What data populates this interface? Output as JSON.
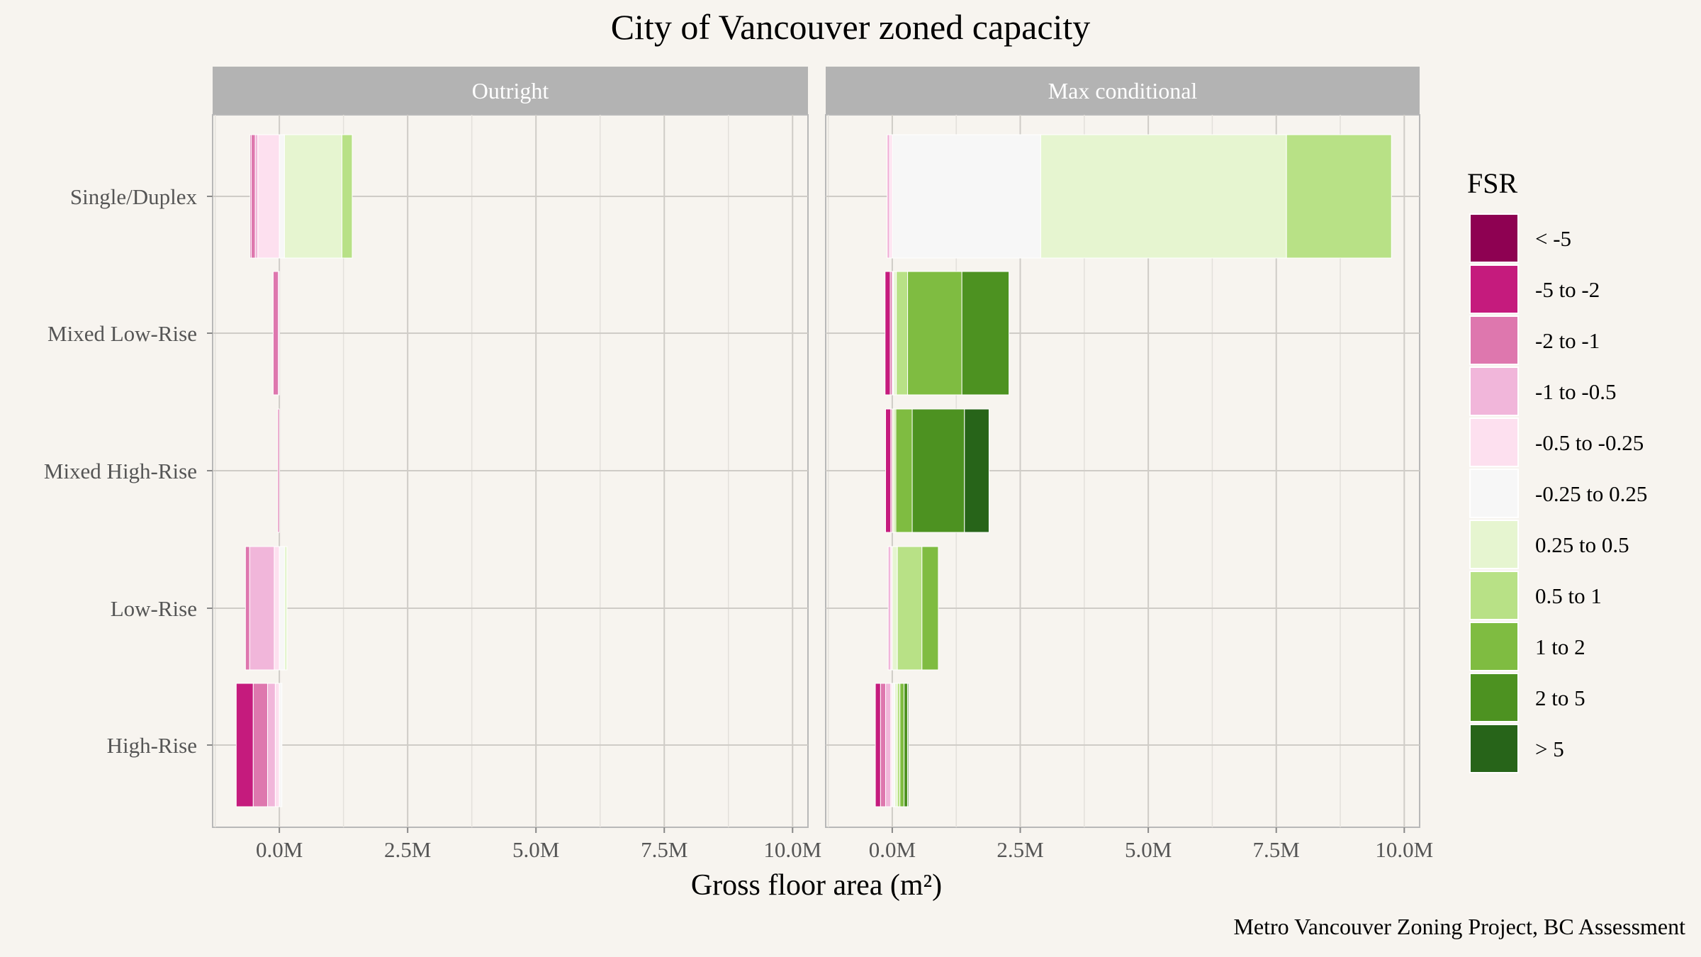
{
  "chart_data": {
    "type": "bar",
    "orientation": "horizontal",
    "stacked": "diverging",
    "title": "City of Vancouver zoned capacity",
    "xlabel": "Gross floor area (m²)",
    "caption": "Metro Vancouver Zoning Project, BC Assessment",
    "xlim": [
      -1.3,
      10.3
    ],
    "x_ticks": [
      0,
      2.5,
      5,
      7.5,
      10
    ],
    "x_tick_labels": [
      "0.0M",
      "2.5M",
      "5.0M",
      "7.5M",
      "10.0M"
    ],
    "categories": [
      "Single/Duplex",
      "Mixed Low-Rise",
      "Mixed High-Rise",
      "Low-Rise",
      "High-Rise"
    ],
    "legend": {
      "title": "FSR",
      "position": "right",
      "entries": [
        {
          "label": "< -5",
          "color": "#8e0152"
        },
        {
          "label": "-5 to -2",
          "color": "#c51b7d"
        },
        {
          "label": "-2 to -1",
          "color": "#de77ae"
        },
        {
          "label": "-1 to -0.5",
          "color": "#f1b6da"
        },
        {
          "label": "-0.5 to -0.25",
          "color": "#fde0ef"
        },
        {
          "label": "-0.25 to 0.25",
          "color": "#f7f7f7"
        },
        {
          "label": "0.25 to 0.5",
          "color": "#e6f5d0"
        },
        {
          "label": "0.5 to 1",
          "color": "#b8e186"
        },
        {
          "label": "1 to 2",
          "color": "#7fbc41"
        },
        {
          "label": "2 to 5",
          "color": "#4d9221"
        },
        {
          "label": "> 5",
          "color": "#276419"
        }
      ]
    },
    "facets": [
      {
        "label": "Outright",
        "groups": [
          {
            "category": "Single/Duplex",
            "segments": [
              {
                "bin": "-5 to -2",
                "value": -0.02
              },
              {
                "bin": "-2 to -1",
                "value": -0.08
              },
              {
                "bin": "-1 to -0.5",
                "value": -0.05
              },
              {
                "bin": "-0.5 to -0.25",
                "value": -0.42
              },
              {
                "bin": "-0.25 to 0.25",
                "value": 0.1
              },
              {
                "bin": "0.25 to 0.5",
                "value": 1.12
              },
              {
                "bin": "0.5 to 1",
                "value": 0.2
              }
            ]
          },
          {
            "category": "Mixed Low-Rise",
            "segments": [
              {
                "bin": "-2 to -1",
                "value": -0.1
              },
              {
                "bin": "-1 to -0.5",
                "value": -0.02
              }
            ]
          },
          {
            "category": "Mixed High-Rise",
            "segments": [
              {
                "bin": "-2 to -1",
                "value": -0.03
              }
            ]
          },
          {
            "category": "Low-Rise",
            "segments": [
              {
                "bin": "-2 to -1",
                "value": -0.08
              },
              {
                "bin": "-1 to -0.5",
                "value": -0.48
              },
              {
                "bin": "-0.5 to -0.25",
                "value": -0.1
              },
              {
                "bin": "-0.25 to 0.25",
                "value": 0.1
              },
              {
                "bin": "0.25 to 0.5",
                "value": 0.05
              }
            ]
          },
          {
            "category": "High-Rise",
            "segments": [
              {
                "bin": "-5 to -2",
                "value": -0.33
              },
              {
                "bin": "-2 to -1",
                "value": -0.28
              },
              {
                "bin": "-1 to -0.5",
                "value": -0.15
              },
              {
                "bin": "-0.5 to -0.25",
                "value": -0.08
              },
              {
                "bin": "-0.25 to 0.25",
                "value": 0.05
              }
            ]
          }
        ]
      },
      {
        "label": "Max conditional",
        "groups": [
          {
            "category": "Single/Duplex",
            "segments": [
              {
                "bin": "-1 to -0.5",
                "value": -0.05
              },
              {
                "bin": "-0.5 to -0.25",
                "value": -0.05
              },
              {
                "bin": "-0.25 to 0.25",
                "value": 2.9
              },
              {
                "bin": "0.25 to 0.5",
                "value": 4.8
              },
              {
                "bin": "0.5 to 1",
                "value": 2.05
              }
            ]
          },
          {
            "category": "Mixed Low-Rise",
            "segments": [
              {
                "bin": "-5 to -2",
                "value": -0.1
              },
              {
                "bin": "-2 to -1",
                "value": -0.04
              },
              {
                "bin": "-0.25 to 0.25",
                "value": 0.03
              },
              {
                "bin": "0.25 to 0.5",
                "value": 0.05
              },
              {
                "bin": "0.5 to 1",
                "value": 0.22
              },
              {
                "bin": "1 to 2",
                "value": 1.06
              },
              {
                "bin": "2 to 5",
                "value": 0.92
              }
            ]
          },
          {
            "category": "Mixed High-Rise",
            "segments": [
              {
                "bin": "-5 to -2",
                "value": -0.1
              },
              {
                "bin": "-2 to -1",
                "value": -0.03
              },
              {
                "bin": "0.25 to 0.5",
                "value": 0.04
              },
              {
                "bin": "0.5 to 1",
                "value": 0.03
              },
              {
                "bin": "1 to 2",
                "value": 0.32
              },
              {
                "bin": "2 to 5",
                "value": 1.02
              },
              {
                "bin": "> 5",
                "value": 0.48
              }
            ]
          },
          {
            "category": "Low-Rise",
            "segments": [
              {
                "bin": "-1 to -0.5",
                "value": -0.05
              },
              {
                "bin": "-0.5 to -0.25",
                "value": -0.03
              },
              {
                "bin": "0.25 to 0.5",
                "value": 0.1
              },
              {
                "bin": "0.5 to 1",
                "value": 0.48
              },
              {
                "bin": "1 to 2",
                "value": 0.32
              }
            ]
          },
          {
            "category": "High-Rise",
            "segments": [
              {
                "bin": "-5 to -2",
                "value": -0.1
              },
              {
                "bin": "-2 to -1",
                "value": -0.1
              },
              {
                "bin": "-1 to -0.5",
                "value": -0.1
              },
              {
                "bin": "-0.5 to -0.25",
                "value": -0.03
              },
              {
                "bin": "-0.25 to 0.25",
                "value": 0.05
              },
              {
                "bin": "0.25 to 0.5",
                "value": 0.05
              },
              {
                "bin": "0.5 to 1",
                "value": 0.05
              },
              {
                "bin": "1 to 2",
                "value": 0.08
              },
              {
                "bin": "2 to 5",
                "value": 0.07
              },
              {
                "bin": "> 5",
                "value": 0.02
              }
            ]
          }
        ]
      }
    ]
  }
}
